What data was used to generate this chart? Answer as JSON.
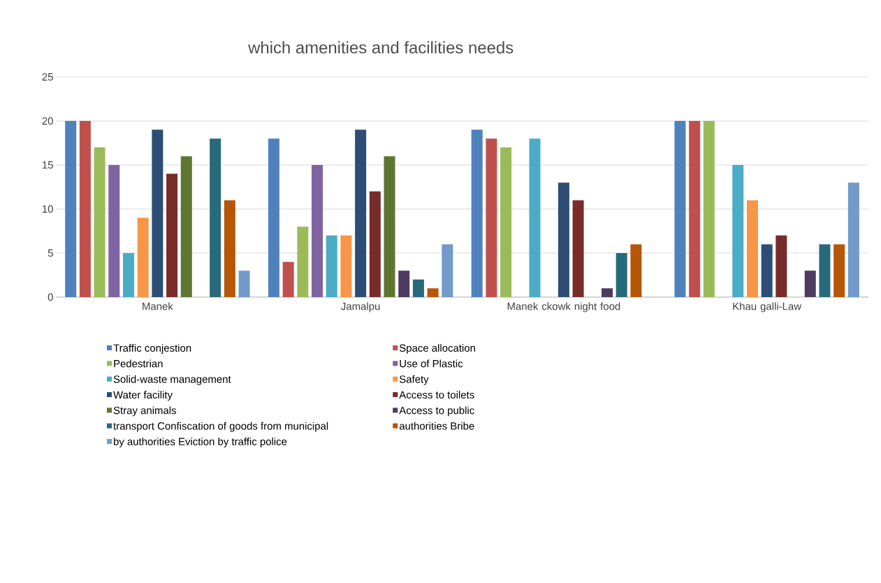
{
  "chart_data": {
    "type": "bar",
    "title": "which amenities and facilities needs",
    "categories": [
      "Manek",
      "Jamalpu",
      "Manek ckowk night food",
      "Khau galli-Law"
    ],
    "series": [
      {
        "name": "Traffic conjestion",
        "color": "#4f81bd",
        "values": [
          20,
          18,
          19,
          20
        ]
      },
      {
        "name": "Space allocation",
        "color": "#c0504d",
        "values": [
          20,
          4,
          18,
          20
        ]
      },
      {
        "name": "Pedestrian",
        "color": "#9bbb59",
        "values": [
          17,
          8,
          17,
          20
        ]
      },
      {
        "name": "Use of Plastic",
        "color": "#8064a2",
        "values": [
          15,
          15,
          null,
          null
        ]
      },
      {
        "name": "Solid-waste management",
        "color": "#4bacc6",
        "values": [
          5,
          7,
          18,
          15
        ]
      },
      {
        "name": "Safety",
        "color": "#f79646",
        "values": [
          9,
          7,
          null,
          11
        ]
      },
      {
        "name": "Water facility",
        "color": "#2c4d75",
        "values": [
          19,
          19,
          13,
          6
        ]
      },
      {
        "name": "Access to toilets",
        "color": "#772c2a",
        "values": [
          14,
          12,
          11,
          7
        ]
      },
      {
        "name": "Stray animals",
        "color": "#5f7530",
        "values": [
          16,
          16,
          null,
          null
        ]
      },
      {
        "name": "Access to public",
        "color": "#4d3b62",
        "values": [
          null,
          3,
          1,
          3
        ]
      },
      {
        "name": "transport Confiscation of goods from municipal",
        "color": "#276a7c",
        "values": [
          18,
          2,
          5,
          6
        ]
      },
      {
        "name": "authorities Bribe",
        "color": "#b65708",
        "values": [
          11,
          1,
          6,
          6
        ]
      },
      {
        "name": "by authorities Eviction by traffic police",
        "color": "#729aca",
        "values": [
          3,
          6,
          null,
          13
        ]
      }
    ],
    "ylim": [
      0,
      25
    ],
    "yticks": [
      0,
      5,
      10,
      15,
      20,
      25
    ],
    "grid": "y",
    "legend": "bottom"
  }
}
